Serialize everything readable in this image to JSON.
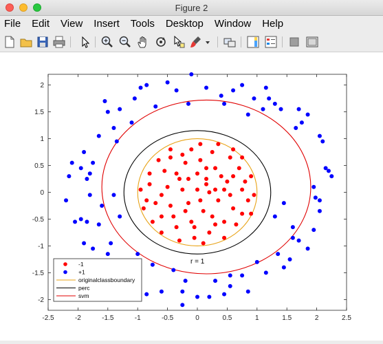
{
  "window": {
    "title": "Figure 2"
  },
  "menu": [
    "File",
    "Edit",
    "View",
    "Insert",
    "Tools",
    "Desktop",
    "Window",
    "Help"
  ],
  "toolbar_icons": [
    "new-figure-icon",
    "open-file-icon",
    "save-icon",
    "print-icon",
    "pointer-icon",
    "zoom-in-icon",
    "zoom-out-icon",
    "pan-hand-icon",
    "rotate-3d-icon",
    "data-cursor-icon",
    "brush-icon",
    "brush-dropdown-icon",
    "link-plot-icon",
    "colorbar-icon",
    "legend-icon",
    "hide-plot-tools-icon",
    "show-plot-tools-icon"
  ],
  "colors": {
    "class_neg": "#ff0000",
    "class_pos": "#0000ff",
    "original": "#e8a317",
    "perc": "#000000",
    "svm": "#e00000"
  },
  "chart_data": {
    "type": "scatter",
    "xlim": [
      -2.5,
      2.5
    ],
    "ylim": [
      -2.2,
      2.2
    ],
    "xticks": [
      "-2.5",
      "-2",
      "-1.5",
      "-1",
      "-0.5",
      "0",
      "0.5",
      "1",
      "1.5",
      "2",
      "2.5"
    ],
    "yticks": [
      "2",
      "1.5",
      "1",
      "0.5",
      "0",
      "-0.5",
      "-1",
      "-1.5",
      "-2"
    ],
    "ytick_values": [
      2,
      1.5,
      1,
      0.5,
      0,
      -0.5,
      -1,
      -1.5,
      -2
    ],
    "annotation": "r = 1",
    "legend": {
      "location": "bottom-left",
      "entries": [
        {
          "label": "-1",
          "kind": "marker",
          "color": "#ff0000"
        },
        {
          "label": "+1",
          "kind": "marker",
          "color": "#0000ff"
        },
        {
          "label": "originalclassboundary",
          "kind": "line",
          "color": "#e8a317"
        },
        {
          "label": "perc",
          "kind": "line",
          "color": "#000000"
        },
        {
          "label": "svm",
          "kind": "line",
          "color": "#e00000"
        }
      ]
    },
    "curves": [
      {
        "name": "originalclassboundary",
        "cx": 0,
        "cy": 0,
        "rx": 1.0,
        "ry": 1.0
      },
      {
        "name": "perc",
        "cx": 0,
        "cy": 0,
        "rx": 1.23,
        "ry": 1.15
      },
      {
        "name": "svm",
        "cx": 0.15,
        "cy": 0.1,
        "rx": 1.75,
        "ry": 1.62
      }
    ],
    "series": [
      {
        "name": "-1",
        "points": [
          [
            -0.8,
            0.15
          ],
          [
            -0.6,
            -0.05
          ],
          [
            -0.5,
            0.1
          ],
          [
            -0.3,
            0.25
          ],
          [
            -0.15,
            -0.2
          ],
          [
            0.0,
            0.35
          ],
          [
            0.15,
            0.15
          ],
          [
            0.3,
            0.45
          ],
          [
            0.5,
            0.2
          ],
          [
            0.6,
            -0.3
          ],
          [
            0.75,
            0.05
          ],
          [
            0.85,
            -0.15
          ],
          [
            0.45,
            -0.55
          ],
          [
            0.2,
            -0.75
          ],
          [
            -0.05,
            -0.85
          ],
          [
            -0.35,
            -0.65
          ],
          [
            -0.6,
            -0.45
          ],
          [
            -0.75,
            -0.55
          ],
          [
            0.05,
            0.6
          ],
          [
            -0.2,
            0.55
          ],
          [
            0.25,
            0.75
          ],
          [
            0.55,
            0.65
          ],
          [
            0.7,
            0.45
          ],
          [
            0.9,
            0.3
          ],
          [
            -0.65,
            0.6
          ],
          [
            -0.45,
            0.65
          ],
          [
            -0.85,
            -0.15
          ],
          [
            0.35,
            -0.15
          ],
          [
            0.1,
            -0.35
          ],
          [
            -0.25,
            0.05
          ],
          [
            0.0,
            0.05
          ],
          [
            0.45,
            0.05
          ],
          [
            0.65,
            -0.6
          ],
          [
            0.3,
            -0.6
          ],
          [
            -0.1,
            -0.55
          ],
          [
            -0.45,
            -0.25
          ],
          [
            -0.95,
            0.05
          ],
          [
            0.95,
            -0.05
          ],
          [
            0.05,
            0.9
          ],
          [
            -0.1,
            0.8
          ],
          [
            0.35,
            0.9
          ],
          [
            -0.35,
            0.35
          ],
          [
            0.15,
            0.45
          ],
          [
            0.6,
            0.3
          ],
          [
            0.75,
            -0.4
          ],
          [
            -0.6,
            -0.75
          ],
          [
            -0.3,
            -0.9
          ],
          [
            0.1,
            -0.95
          ],
          [
            0.45,
            -0.85
          ],
          [
            -0.8,
            0.35
          ],
          [
            -0.55,
            0.4
          ],
          [
            -0.15,
            0.25
          ],
          [
            0.2,
            0.0
          ],
          [
            0.4,
            0.3
          ],
          [
            0.8,
            0.2
          ],
          [
            0.55,
            -0.05
          ],
          [
            -0.4,
            -0.45
          ],
          [
            -0.2,
            -0.35
          ],
          [
            0.25,
            -0.45
          ],
          [
            -0.7,
            -0.2
          ],
          [
            0.05,
            -0.15
          ],
          [
            -0.45,
            0.8
          ],
          [
            0.6,
            0.8
          ],
          [
            0.75,
            0.65
          ],
          [
            0.9,
            -0.4
          ],
          [
            -0.9,
            -0.3
          ],
          [
            -0.25,
            0.7
          ],
          [
            0.15,
            0.25
          ],
          [
            0.3,
            0.05
          ],
          [
            -0.05,
            -0.65
          ]
        ]
      },
      {
        "name": "+1",
        "points": [
          [
            -0.5,
            2.05
          ],
          [
            -0.85,
            2.0
          ],
          [
            -1.05,
            1.75
          ],
          [
            -1.3,
            1.55
          ],
          [
            -1.4,
            1.2
          ],
          [
            -1.5,
            1.5
          ],
          [
            -1.55,
            1.7
          ],
          [
            -0.35,
            1.9
          ],
          [
            -0.1,
            2.2
          ],
          [
            0.15,
            1.95
          ],
          [
            0.4,
            1.8
          ],
          [
            0.6,
            1.9
          ],
          [
            0.75,
            2.0
          ],
          [
            0.95,
            1.75
          ],
          [
            1.1,
            1.55
          ],
          [
            1.3,
            1.65
          ],
          [
            1.7,
            1.55
          ],
          [
            1.65,
            1.2
          ],
          [
            1.75,
            1.3
          ],
          [
            2.05,
            1.05
          ],
          [
            2.15,
            0.45
          ],
          [
            2.2,
            0.4
          ],
          [
            1.95,
            0.1
          ],
          [
            1.98,
            -0.1
          ],
          [
            2.05,
            -0.15
          ],
          [
            2.05,
            -0.35
          ],
          [
            1.95,
            -0.7
          ],
          [
            1.6,
            -0.65
          ],
          [
            1.7,
            -0.9
          ],
          [
            1.55,
            -1.25
          ],
          [
            1.35,
            -1.15
          ],
          [
            1.0,
            -1.3
          ],
          [
            0.75,
            -1.55
          ],
          [
            0.55,
            -1.75
          ],
          [
            0.45,
            -1.9
          ],
          [
            0.2,
            -1.95
          ],
          [
            0.0,
            -1.95
          ],
          [
            -0.25,
            -1.85
          ],
          [
            -0.25,
            -2.1
          ],
          [
            -0.6,
            -1.85
          ],
          [
            -0.85,
            -1.9
          ],
          [
            -1.2,
            -1.65
          ],
          [
            -1.35,
            -1.5
          ],
          [
            -1.5,
            -1.15
          ],
          [
            -1.75,
            -1.05
          ],
          [
            -1.9,
            -0.95
          ],
          [
            -1.85,
            -0.55
          ],
          [
            -1.95,
            -0.5
          ],
          [
            -2.05,
            -0.55
          ],
          [
            -2.2,
            -0.15
          ],
          [
            -1.85,
            0.25
          ],
          [
            -1.9,
            0.75
          ],
          [
            -2.15,
            0.3
          ],
          [
            -1.65,
            1.05
          ],
          [
            -1.8,
            -0.05
          ],
          [
            -1.6,
            -0.25
          ],
          [
            -1.65,
            -0.6
          ],
          [
            -1.3,
            -0.45
          ],
          [
            -1.45,
            -0.95
          ],
          [
            -1.0,
            -1.15
          ],
          [
            -0.75,
            -1.35
          ],
          [
            -0.4,
            -1.45
          ],
          [
            0.3,
            -1.65
          ],
          [
            0.85,
            -1.85
          ],
          [
            1.15,
            -1.5
          ],
          [
            1.45,
            -1.4
          ],
          [
            1.6,
            -0.85
          ],
          [
            1.85,
            -1.05
          ],
          [
            2.1,
            0.95
          ],
          [
            2.25,
            0.3
          ],
          [
            1.85,
            1.45
          ],
          [
            1.4,
            1.55
          ],
          [
            1.2,
            1.75
          ],
          [
            0.85,
            1.45
          ],
          [
            0.45,
            1.65
          ],
          [
            -0.15,
            1.65
          ],
          [
            -0.7,
            1.6
          ],
          [
            -1.1,
            1.3
          ],
          [
            -1.35,
            0.95
          ],
          [
            -1.75,
            0.55
          ],
          [
            -1.95,
            0.45
          ],
          [
            -1.8,
            0.35
          ],
          [
            -0.2,
            -1.65
          ],
          [
            0.55,
            -1.55
          ],
          [
            1.3,
            -0.45
          ],
          [
            1.45,
            -0.2
          ],
          [
            -1.4,
            -0.05
          ],
          [
            -2.1,
            0.55
          ],
          [
            1.15,
            1.95
          ],
          [
            -0.95,
            1.95
          ]
        ]
      }
    ]
  }
}
